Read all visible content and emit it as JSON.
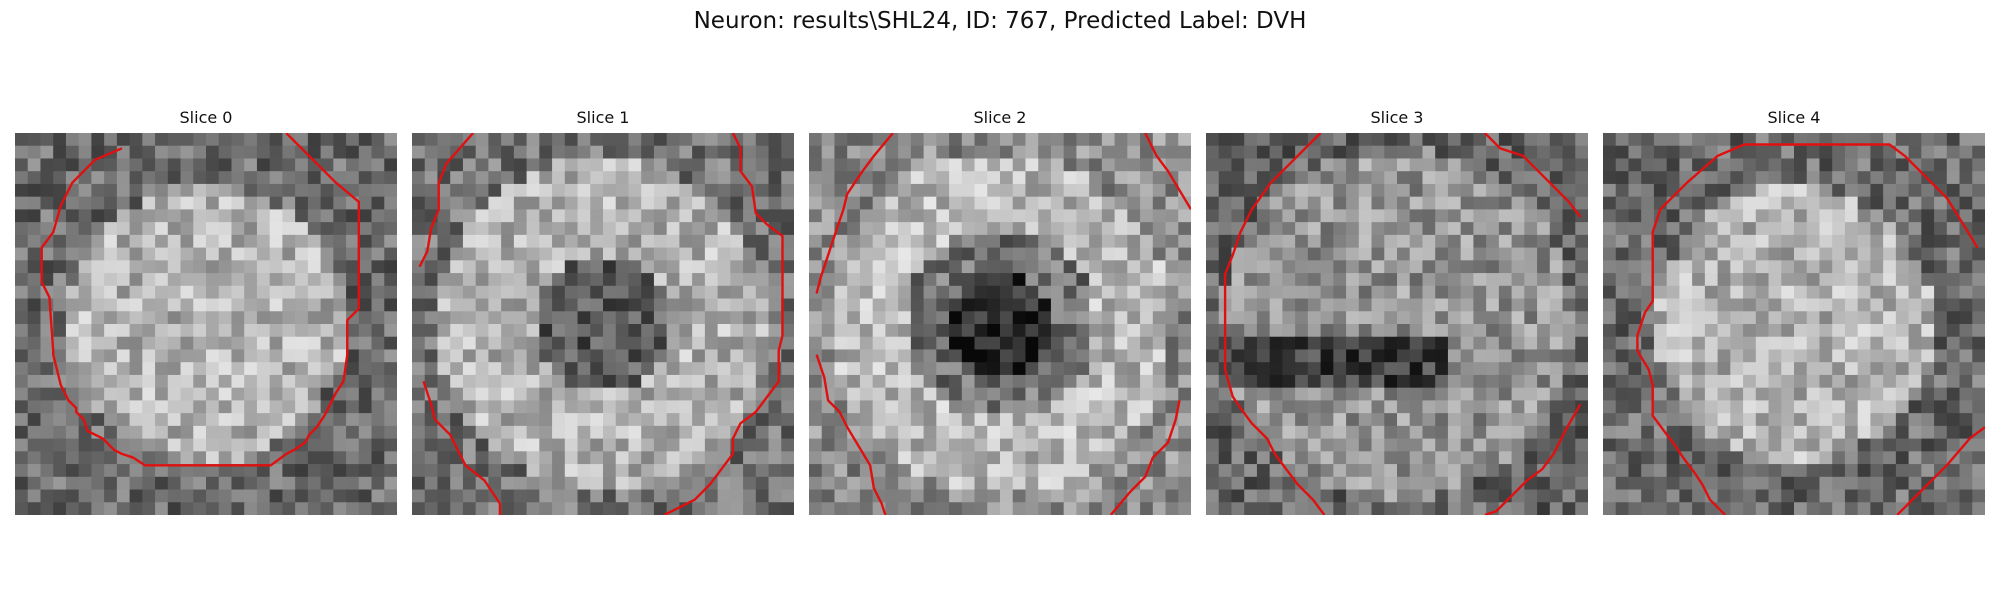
{
  "figure": {
    "title": "Neuron: results\\SHL24, ID: 767, Predicted Label: DVH"
  },
  "panels": [
    {
      "title": "Slice 0",
      "seed": 11,
      "brightness": "bright-disk-center",
      "contour": [
        [
          0.28,
          0.04
        ],
        [
          0.21,
          0.07
        ],
        [
          0.15,
          0.13
        ],
        [
          0.12,
          0.19
        ],
        [
          0.1,
          0.26
        ],
        [
          0.07,
          0.3
        ],
        [
          0.07,
          0.39
        ],
        [
          0.09,
          0.43
        ],
        [
          0.1,
          0.57
        ],
        [
          0.1,
          0.58
        ],
        [
          0.12,
          0.66
        ],
        [
          0.14,
          0.7
        ],
        [
          0.16,
          0.72
        ],
        [
          0.16,
          0.73
        ],
        [
          0.18,
          0.75
        ],
        [
          0.19,
          0.78
        ],
        [
          0.23,
          0.8
        ],
        [
          0.26,
          0.83
        ],
        [
          0.28,
          0.84
        ],
        [
          0.31,
          0.85
        ],
        [
          0.34,
          0.87
        ],
        [
          0.67,
          0.87
        ],
        [
          0.71,
          0.84
        ],
        [
          0.73,
          0.83
        ],
        [
          0.76,
          0.81
        ],
        [
          0.77,
          0.79
        ],
        [
          0.79,
          0.77
        ],
        [
          0.81,
          0.74
        ],
        [
          0.83,
          0.7
        ],
        [
          0.84,
          0.68
        ],
        [
          0.86,
          0.65
        ],
        [
          0.87,
          0.58
        ],
        [
          0.87,
          0.49
        ],
        [
          0.9,
          0.46
        ],
        [
          0.9,
          0.18
        ],
        [
          0.84,
          0.13
        ],
        [
          0.71,
          0.0
        ]
      ],
      "contour_segments": null
    },
    {
      "title": "Slice 1",
      "seed": 23,
      "brightness": "dark-center-ring",
      "contour_segments": [
        [
          [
            0.16,
            0.0
          ],
          [
            0.09,
            0.08
          ],
          [
            0.07,
            0.13
          ],
          [
            0.07,
            0.2
          ],
          [
            0.05,
            0.25
          ],
          [
            0.04,
            0.31
          ],
          [
            0.02,
            0.35
          ]
        ],
        [
          [
            0.84,
            0.0
          ],
          [
            0.86,
            0.04
          ],
          [
            0.86,
            0.1
          ],
          [
            0.89,
            0.14
          ],
          [
            0.9,
            0.21
          ],
          [
            0.93,
            0.24
          ],
          [
            0.97,
            0.27
          ],
          [
            0.97,
            0.53
          ],
          [
            0.96,
            0.57
          ],
          [
            0.96,
            0.65
          ],
          [
            0.93,
            0.69
          ],
          [
            0.9,
            0.73
          ],
          [
            0.86,
            0.76
          ],
          [
            0.84,
            0.8
          ],
          [
            0.84,
            0.84
          ],
          [
            0.81,
            0.88
          ],
          [
            0.78,
            0.92
          ],
          [
            0.74,
            0.96
          ],
          [
            0.7,
            0.98
          ],
          [
            0.66,
            1.0
          ]
        ],
        [
          [
            0.03,
            0.65
          ],
          [
            0.05,
            0.71
          ],
          [
            0.06,
            0.75
          ],
          [
            0.1,
            0.79
          ],
          [
            0.12,
            0.83
          ],
          [
            0.14,
            0.87
          ],
          [
            0.19,
            0.91
          ],
          [
            0.21,
            0.94
          ],
          [
            0.23,
            0.97
          ],
          [
            0.23,
            1.0
          ]
        ]
      ]
    },
    {
      "title": "Slice 2",
      "seed": 37,
      "brightness": "dark-center",
      "contour_segments": [
        [
          [
            0.22,
            0.0
          ],
          [
            0.17,
            0.06
          ],
          [
            0.14,
            0.1
          ],
          [
            0.12,
            0.13
          ],
          [
            0.1,
            0.16
          ],
          [
            0.09,
            0.2
          ],
          [
            0.07,
            0.26
          ],
          [
            0.05,
            0.32
          ],
          [
            0.03,
            0.38
          ],
          [
            0.02,
            0.42
          ]
        ],
        [
          [
            0.88,
            0.0
          ],
          [
            0.91,
            0.06
          ],
          [
            0.94,
            0.1
          ],
          [
            1.0,
            0.2
          ]
        ],
        [
          [
            0.02,
            0.58
          ],
          [
            0.04,
            0.64
          ],
          [
            0.05,
            0.7
          ],
          [
            0.08,
            0.73
          ],
          [
            0.1,
            0.77
          ],
          [
            0.13,
            0.82
          ],
          [
            0.16,
            0.87
          ],
          [
            0.17,
            0.93
          ],
          [
            0.19,
            0.97
          ],
          [
            0.2,
            1.0
          ]
        ],
        [
          [
            0.79,
            1.0
          ],
          [
            0.84,
            0.94
          ],
          [
            0.88,
            0.9
          ],
          [
            0.9,
            0.85
          ],
          [
            0.94,
            0.81
          ],
          [
            0.96,
            0.75
          ],
          [
            0.97,
            0.7
          ]
        ]
      ]
    },
    {
      "title": "Slice 3",
      "seed": 53,
      "brightness": "dark-band",
      "contour_segments": [
        [
          [
            0.3,
            0.0
          ],
          [
            0.23,
            0.07
          ],
          [
            0.17,
            0.13
          ],
          [
            0.12,
            0.2
          ],
          [
            0.09,
            0.26
          ],
          [
            0.07,
            0.32
          ],
          [
            0.05,
            0.37
          ],
          [
            0.05,
            0.62
          ],
          [
            0.07,
            0.69
          ],
          [
            0.09,
            0.72
          ],
          [
            0.12,
            0.76
          ],
          [
            0.16,
            0.8
          ],
          [
            0.18,
            0.84
          ],
          [
            0.21,
            0.88
          ],
          [
            0.24,
            0.92
          ],
          [
            0.28,
            0.96
          ],
          [
            0.31,
            1.0
          ]
        ],
        [
          [
            0.73,
            0.0
          ],
          [
            0.77,
            0.04
          ],
          [
            0.83,
            0.06
          ],
          [
            0.87,
            0.1
          ],
          [
            0.91,
            0.14
          ],
          [
            0.95,
            0.18
          ],
          [
            0.98,
            0.22
          ]
        ],
        [
          [
            0.73,
            1.0
          ],
          [
            0.76,
            0.99
          ],
          [
            0.8,
            0.95
          ],
          [
            0.84,
            0.91
          ],
          [
            0.88,
            0.88
          ],
          [
            0.91,
            0.84
          ],
          [
            0.94,
            0.78
          ],
          [
            0.98,
            0.71
          ]
        ]
      ]
    },
    {
      "title": "Slice 4",
      "seed": 71,
      "brightness": "bright-disk-center",
      "contour_segments": [
        [
          [
            0.98,
            0.3
          ],
          [
            0.95,
            0.25
          ],
          [
            0.9,
            0.17
          ],
          [
            0.85,
            0.12
          ],
          [
            0.79,
            0.06
          ],
          [
            0.75,
            0.03
          ],
          [
            0.37,
            0.03
          ],
          [
            0.3,
            0.06
          ],
          [
            0.22,
            0.13
          ],
          [
            0.15,
            0.2
          ],
          [
            0.13,
            0.26
          ],
          [
            0.13,
            0.44
          ],
          [
            0.11,
            0.47
          ],
          [
            0.09,
            0.53
          ],
          [
            0.09,
            0.57
          ],
          [
            0.12,
            0.62
          ],
          [
            0.13,
            0.66
          ],
          [
            0.13,
            0.74
          ],
          [
            0.16,
            0.78
          ],
          [
            0.19,
            0.82
          ],
          [
            0.21,
            0.85
          ],
          [
            0.24,
            0.89
          ],
          [
            0.26,
            0.92
          ],
          [
            0.28,
            0.96
          ],
          [
            0.32,
            1.0
          ]
        ],
        [
          [
            0.77,
            1.0
          ],
          [
            0.84,
            0.93
          ],
          [
            0.9,
            0.87
          ],
          [
            0.96,
            0.8
          ],
          [
            1.0,
            0.77
          ]
        ]
      ]
    }
  ],
  "colors": {
    "contour": "#e01010",
    "text": "#111111"
  }
}
